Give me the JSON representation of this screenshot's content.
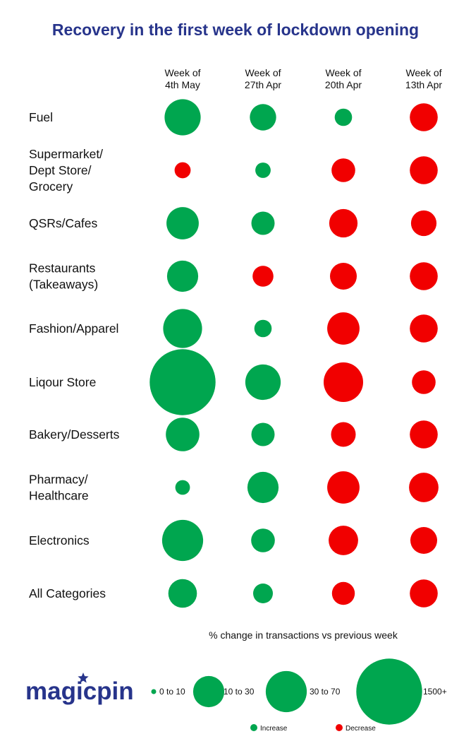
{
  "colors": {
    "increase": "#00a64f",
    "decrease": "#f10000",
    "title": "#27348b",
    "text": "#111111"
  },
  "logo": {
    "text": "magicpin",
    "icon": "star-icon"
  },
  "chart_data": {
    "type": "bubble-matrix",
    "title": "Recovery in the first week of lockdown opening",
    "columns": [
      [
        "Week of",
        "4th May"
      ],
      [
        "Week of",
        "27th Apr"
      ],
      [
        "Week of",
        "20th Apr"
      ],
      [
        "Week of",
        "13th Apr"
      ]
    ],
    "rows": [
      {
        "label": [
          "Fuel"
        ],
        "cells": [
          [
            "increase",
            "10 to 30"
          ],
          [
            "increase",
            "0 to 10"
          ],
          [
            "increase",
            "0 to 10"
          ],
          [
            "decrease",
            "0 to 10"
          ]
        ]
      },
      {
        "label": [
          "Supermarket/",
          "Dept Store/",
          "Grocery"
        ],
        "cells": [
          [
            "decrease",
            "0 to 10"
          ],
          [
            "increase",
            "0 to 10"
          ],
          [
            "decrease",
            "0 to 10"
          ],
          [
            "decrease",
            "0 to 10"
          ]
        ]
      },
      {
        "label": [
          "QSRs/Cafes"
        ],
        "cells": [
          [
            "increase",
            "10 to 30"
          ],
          [
            "increase",
            "0 to 10"
          ],
          [
            "decrease",
            "0 to 10"
          ],
          [
            "decrease",
            "0 to 10"
          ]
        ]
      },
      {
        "label": [
          "Restaurants",
          "(Takeaways)"
        ],
        "cells": [
          [
            "increase",
            "10 to 30"
          ],
          [
            "decrease",
            "0 to 10"
          ],
          [
            "decrease",
            "0 to 10"
          ],
          [
            "decrease",
            "0 to 10"
          ]
        ]
      },
      {
        "label": [
          "Fashion/Apparel"
        ],
        "cells": [
          [
            "increase",
            "30 to 70"
          ],
          [
            "increase",
            "0 to 10"
          ],
          [
            "decrease",
            "10 to 30"
          ],
          [
            "decrease",
            "0 to 10"
          ]
        ]
      },
      {
        "label": [
          "Liqour Store"
        ],
        "cells": [
          [
            "increase",
            "1500+"
          ],
          [
            "increase",
            "30 to 70"
          ],
          [
            "decrease",
            "30 to 70"
          ],
          [
            "decrease",
            "0 to 10"
          ]
        ]
      },
      {
        "label": [
          "Bakery/Desserts"
        ],
        "cells": [
          [
            "increase",
            "10 to 30"
          ],
          [
            "increase",
            "0 to 10"
          ],
          [
            "decrease",
            "0 to 10"
          ],
          [
            "decrease",
            "0 to 10"
          ]
        ]
      },
      {
        "label": [
          "Pharmacy/",
          "Healthcare"
        ],
        "cells": [
          [
            "increase",
            "0 to 10"
          ],
          [
            "increase",
            "10 to 30"
          ],
          [
            "decrease",
            "10 to 30"
          ],
          [
            "decrease",
            "10 to 30"
          ]
        ]
      },
      {
        "label": [
          "Electronics"
        ],
        "cells": [
          [
            "increase",
            "30 to 70"
          ],
          [
            "increase",
            "0 to 10"
          ],
          [
            "decrease",
            "10 to 30"
          ],
          [
            "decrease",
            "0 to 10"
          ]
        ]
      },
      {
        "label": [
          "All Categories"
        ],
        "cells": [
          [
            "increase",
            "10 to 30"
          ],
          [
            "increase",
            "0 to 10"
          ],
          [
            "decrease",
            "0 to 10"
          ],
          [
            "decrease",
            "10 to 30"
          ]
        ]
      }
    ],
    "sizes": [
      [
        0.6,
        0.32,
        0.14,
        0.36
      ],
      [
        0.12,
        0.11,
        0.26,
        0.36
      ],
      [
        0.48,
        0.25,
        0.37,
        0.3
      ],
      [
        0.45,
        0.2,
        0.33,
        0.36
      ],
      [
        0.7,
        0.14,
        0.48,
        0.36
      ],
      [
        2.0,
        0.58,
        0.72,
        0.26
      ],
      [
        0.52,
        0.25,
        0.28,
        0.36
      ],
      [
        0.1,
        0.45,
        0.48,
        0.4
      ],
      [
        0.78,
        0.26,
        0.4,
        0.33
      ],
      [
        0.38,
        0.18,
        0.24,
        0.36
      ]
    ],
    "legend": {
      "title": "% change in transactions vs previous week",
      "size_bins": [
        "0 to 10",
        "10 to 30",
        "30 to 70",
        "1500+"
      ],
      "size_values": [
        0.08,
        0.45,
        0.78,
        2.0
      ],
      "colors": [
        {
          "label": "Increase",
          "color": "#00a64f"
        },
        {
          "label": "Decrease",
          "color": "#f10000"
        }
      ]
    }
  }
}
